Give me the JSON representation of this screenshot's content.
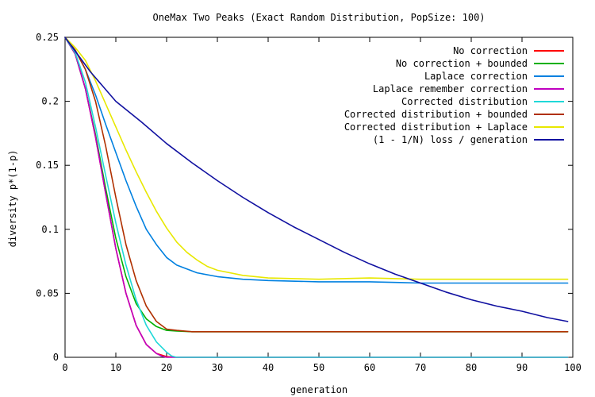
{
  "chart_data": {
    "type": "line",
    "title": "OneMax Two Peaks (Exact Random Distribution, PopSize: 100)",
    "xlabel": "generation",
    "ylabel": "diversity p*(1-p)",
    "xlim": [
      0,
      100
    ],
    "ylim": [
      0,
      0.25
    ],
    "xticks": [
      "0",
      "10",
      "20",
      "30",
      "40",
      "50",
      "60",
      "70",
      "80",
      "90",
      "100"
    ],
    "yticks": [
      "0",
      "0.05",
      "0.1",
      "0.15",
      "0.2",
      "0.25"
    ],
    "legend_position": "top-right",
    "grid": false,
    "series": [
      {
        "name": "No correction",
        "color": "#ff0000",
        "points": [
          [
            0,
            0.25
          ],
          [
            2,
            0.237
          ],
          [
            4,
            0.21
          ],
          [
            6,
            0.172
          ],
          [
            8,
            0.128
          ],
          [
            10,
            0.085
          ],
          [
            12,
            0.05
          ],
          [
            14,
            0.025
          ],
          [
            16,
            0.01
          ],
          [
            18,
            0.003
          ],
          [
            20,
            0.0005
          ],
          [
            22,
            0
          ],
          [
            99,
            0
          ]
        ]
      },
      {
        "name": "No correction + bounded",
        "color": "#00b000",
        "points": [
          [
            0,
            0.25
          ],
          [
            2,
            0.237
          ],
          [
            4,
            0.21
          ],
          [
            6,
            0.174
          ],
          [
            8,
            0.132
          ],
          [
            10,
            0.093
          ],
          [
            12,
            0.063
          ],
          [
            14,
            0.042
          ],
          [
            16,
            0.03
          ],
          [
            18,
            0.024
          ],
          [
            20,
            0.021
          ],
          [
            22,
            0.0205
          ],
          [
            25,
            0.02
          ],
          [
            99,
            0.02
          ]
        ]
      },
      {
        "name": "Laplace correction",
        "color": "#0080e0",
        "points": [
          [
            0,
            0.25
          ],
          [
            2,
            0.24
          ],
          [
            4,
            0.225
          ],
          [
            6,
            0.205
          ],
          [
            8,
            0.182
          ],
          [
            10,
            0.16
          ],
          [
            12,
            0.138
          ],
          [
            14,
            0.118
          ],
          [
            16,
            0.1
          ],
          [
            18,
            0.088
          ],
          [
            20,
            0.078
          ],
          [
            22,
            0.072
          ],
          [
            24,
            0.069
          ],
          [
            26,
            0.066
          ],
          [
            30,
            0.063
          ],
          [
            35,
            0.061
          ],
          [
            40,
            0.06
          ],
          [
            50,
            0.059
          ],
          [
            60,
            0.059
          ],
          [
            70,
            0.058
          ],
          [
            80,
            0.058
          ],
          [
            99,
            0.058
          ]
        ]
      },
      {
        "name": "Laplace remember correction",
        "color": "#c000c0",
        "points": [
          [
            0,
            0.25
          ],
          [
            2,
            0.237
          ],
          [
            4,
            0.21
          ],
          [
            6,
            0.172
          ],
          [
            8,
            0.128
          ],
          [
            10,
            0.085
          ],
          [
            12,
            0.05
          ],
          [
            14,
            0.025
          ],
          [
            16,
            0.01
          ],
          [
            18,
            0.003
          ],
          [
            19,
            0.001
          ],
          [
            20,
            0
          ],
          [
            99,
            0
          ]
        ]
      },
      {
        "name": "Corrected distribution",
        "color": "#20d8d8",
        "points": [
          [
            0,
            0.25
          ],
          [
            2,
            0.238
          ],
          [
            4,
            0.215
          ],
          [
            6,
            0.18
          ],
          [
            8,
            0.142
          ],
          [
            10,
            0.105
          ],
          [
            12,
            0.072
          ],
          [
            14,
            0.045
          ],
          [
            16,
            0.025
          ],
          [
            18,
            0.012
          ],
          [
            20,
            0.004
          ],
          [
            21,
            0.001
          ],
          [
            22,
            0
          ],
          [
            99,
            0
          ]
        ]
      },
      {
        "name": "Corrected distribution + bounded",
        "color": "#b03000",
        "points": [
          [
            0,
            0.25
          ],
          [
            2,
            0.24
          ],
          [
            4,
            0.225
          ],
          [
            6,
            0.2
          ],
          [
            8,
            0.165
          ],
          [
            10,
            0.125
          ],
          [
            12,
            0.088
          ],
          [
            14,
            0.06
          ],
          [
            16,
            0.04
          ],
          [
            18,
            0.028
          ],
          [
            20,
            0.022
          ],
          [
            22,
            0.021
          ],
          [
            25,
            0.02
          ],
          [
            99,
            0.02
          ]
        ]
      },
      {
        "name": "Corrected distribution + Laplace",
        "color": "#e8e800",
        "points": [
          [
            0,
            0.25
          ],
          [
            2,
            0.242
          ],
          [
            4,
            0.232
          ],
          [
            6,
            0.216
          ],
          [
            8,
            0.198
          ],
          [
            10,
            0.18
          ],
          [
            12,
            0.162
          ],
          [
            14,
            0.145
          ],
          [
            16,
            0.129
          ],
          [
            18,
            0.114
          ],
          [
            20,
            0.101
          ],
          [
            22,
            0.09
          ],
          [
            24,
            0.082
          ],
          [
            26,
            0.076
          ],
          [
            28,
            0.071
          ],
          [
            30,
            0.068
          ],
          [
            35,
            0.064
          ],
          [
            40,
            0.062
          ],
          [
            50,
            0.061
          ],
          [
            60,
            0.062
          ],
          [
            70,
            0.061
          ],
          [
            80,
            0.061
          ],
          [
            99,
            0.061
          ]
        ]
      },
      {
        "name": "(1 - 1/N) loss / generation",
        "color": "#1010a0",
        "points": [
          [
            0,
            0.25
          ],
          [
            5,
            0.223
          ],
          [
            10,
            0.2
          ],
          [
            15,
            0.184
          ],
          [
            20,
            0.167
          ],
          [
            25,
            0.152
          ],
          [
            30,
            0.138
          ],
          [
            35,
            0.125
          ],
          [
            40,
            0.113
          ],
          [
            45,
            0.102
          ],
          [
            50,
            0.092
          ],
          [
            55,
            0.082
          ],
          [
            60,
            0.073
          ],
          [
            65,
            0.065
          ],
          [
            70,
            0.058
          ],
          [
            75,
            0.051
          ],
          [
            80,
            0.045
          ],
          [
            85,
            0.04
          ],
          [
            90,
            0.036
          ],
          [
            95,
            0.031
          ],
          [
            99,
            0.028
          ]
        ]
      }
    ]
  }
}
